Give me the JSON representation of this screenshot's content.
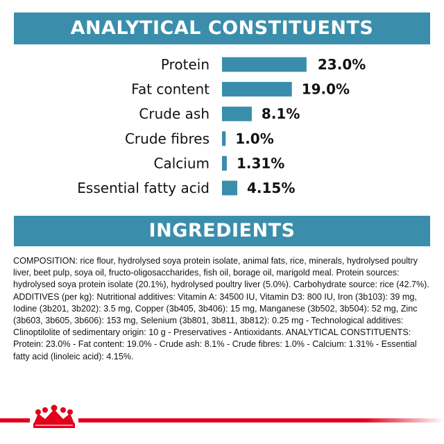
{
  "sections": {
    "analytical_title": "ANALYTICAL CONSTITUENTS",
    "ingredients_title": "INGREDIENTS"
  },
  "chart_data": {
    "type": "bar",
    "orientation": "horizontal",
    "categories": [
      "Protein",
      "Fat content",
      "Crude ash",
      "Crude fibres",
      "Calcium",
      "Essential fatty acid"
    ],
    "values": [
      23.0,
      19.0,
      8.1,
      1.0,
      1.31,
      4.15
    ],
    "value_labels": [
      "23.0%",
      "19.0%",
      "8.1%",
      "1.0%",
      "1.31%",
      "4.15%"
    ],
    "unit": "%",
    "color": "#3a8eab",
    "grid": false,
    "legend": "none"
  },
  "ingredients": {
    "text": "COMPOSITION: rice flour, hydrolysed soya protein isolate, animal fats, rice, minerals, hydrolysed poultry liver, beet pulp, soya oil, fructo-oligosaccharides, fish oil, borage oil, marigold meal. Protein sources: hydrolysed soya protein isolate (20.1%), hydrolysed poultry liver (5.0%). Carbohydrate source: rice (42.7%). ADDITIVES (per kg): Nutritional additives: Vitamin A: 34500 IU, Vitamin D3: 800 IU, Iron (3b103): 39 mg, Iodine (3b201, 3b202): 3.5 mg, Copper (3b405, 3b406): 15 mg, Manganese (3b502, 3b504): 52 mg, Zinc (3b603, 3b605, 3b606): 153 mg, Selenium (3b801, 3b811, 3b812): 0.25 mg - Technological additives: Clinoptilolite of sedimentary origin: 10 g - Preservatives - Antioxidants. ANALYTICAL CONSTITUENTS: Protein: 23.0% - Fat content: 19.0% - Crude ash: 8.1% - Crude fibres: 1.0% - Calcium: 1.31% - Essential fatty acid (linoleic acid): 4.15%."
  },
  "footer": {
    "logo_icon": "crown-logo-icon",
    "accent_color": "#e2001a"
  }
}
